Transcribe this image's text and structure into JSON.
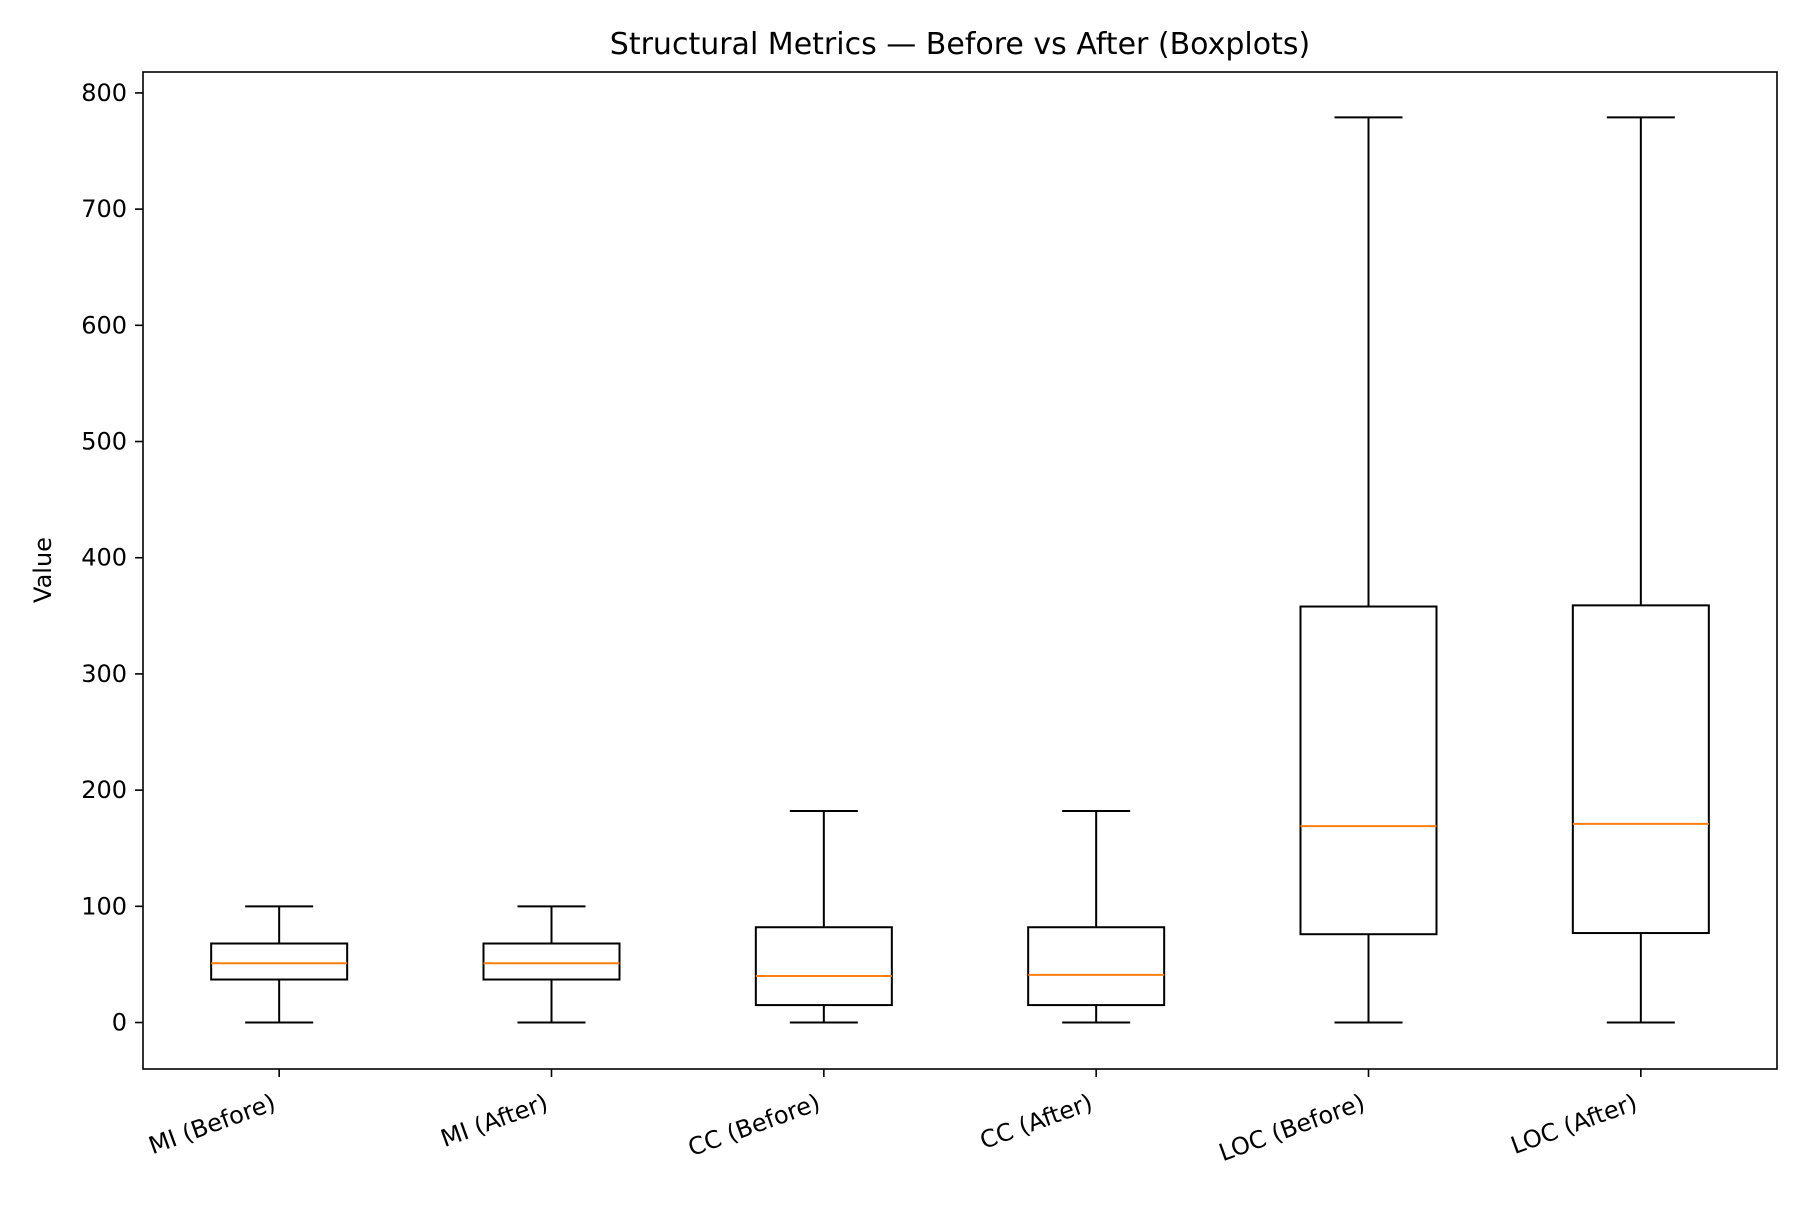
{
  "chart_data": {
    "type": "boxplot",
    "title": "Structural Metrics — Before vs After (Boxplots)",
    "xlabel": "",
    "ylabel": "Value",
    "ylim": [
      -40,
      818
    ],
    "yticks": [
      0,
      100,
      200,
      300,
      400,
      500,
      600,
      700,
      800
    ],
    "ytick_labels": [
      "0",
      "100",
      "200",
      "300",
      "400",
      "500",
      "600",
      "700",
      "800"
    ],
    "grid": false,
    "categories": [
      "MI (Before)",
      "MI (After)",
      "CC (Before)",
      "CC (After)",
      "LOC (Before)",
      "LOC (After)"
    ],
    "boxes": [
      {
        "label": "MI (Before)",
        "whisker_low": 0,
        "q1": 37,
        "median": 51,
        "q3": 68,
        "whisker_high": 100
      },
      {
        "label": "MI (After)",
        "whisker_low": 0,
        "q1": 37,
        "median": 51,
        "q3": 68,
        "whisker_high": 100
      },
      {
        "label": "CC (Before)",
        "whisker_low": 0,
        "q1": 15,
        "median": 40,
        "q3": 82,
        "whisker_high": 182
      },
      {
        "label": "CC (After)",
        "whisker_low": 0,
        "q1": 15,
        "median": 41,
        "q3": 82,
        "whisker_high": 182
      },
      {
        "label": "LOC (Before)",
        "whisker_low": 0,
        "q1": 76,
        "median": 169,
        "q3": 358,
        "whisker_high": 779
      },
      {
        "label": "LOC (After)",
        "whisker_low": 0,
        "q1": 77,
        "median": 171,
        "q3": 359,
        "whisker_high": 779
      }
    ],
    "colors": {
      "box": "#000000",
      "median": "#ff7f0e",
      "axes": "#000000"
    }
  }
}
